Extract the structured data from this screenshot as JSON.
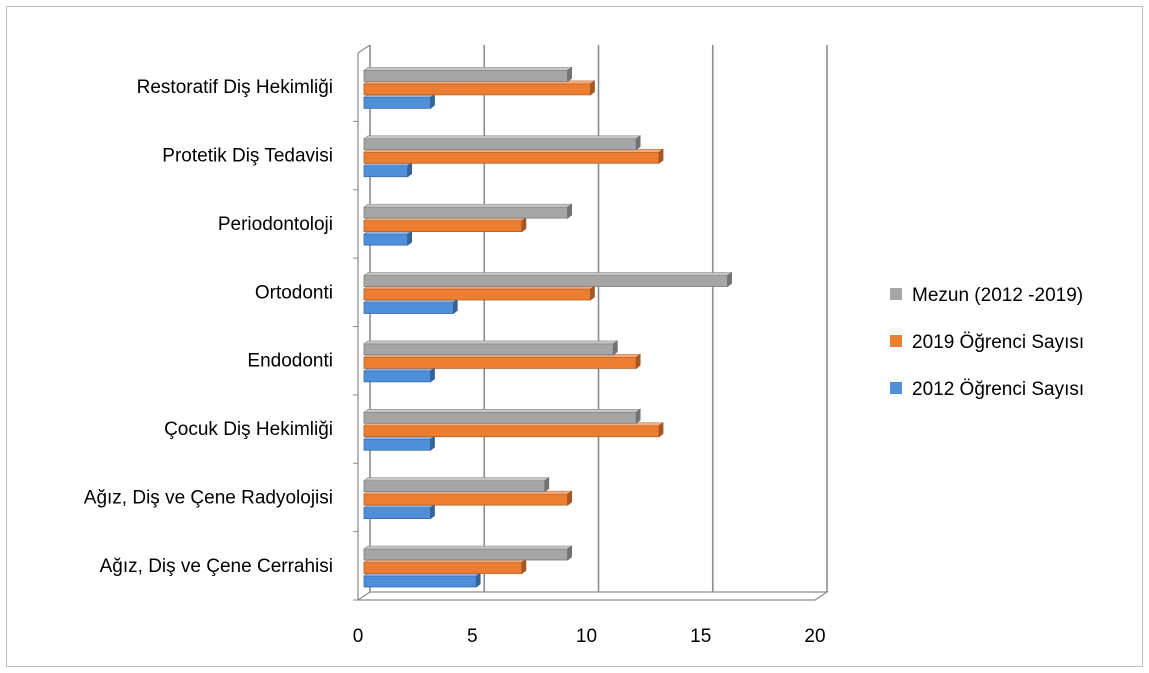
{
  "chart_data": {
    "type": "bar",
    "orientation": "horizontal",
    "style": "3d-clustered",
    "categories": [
      "Ağız, Diş ve Çene Cerrahisi",
      "Ağız, Diş ve Çene Radyolojisi",
      "Çocuk Diş Hekimliği",
      "Endodonti",
      "Ortodonti",
      "Periodontoloji",
      "Protetik Diş Tedavisi",
      "Restoratif Diş Hekimliği"
    ],
    "series": [
      {
        "name": "2012 Öğrenci Sayısı",
        "color": "#4f8fd9",
        "values": [
          5,
          3,
          3,
          3,
          4,
          2,
          2,
          3
        ]
      },
      {
        "name": "2019 Öğrenci Sayısı",
        "color": "#ed7d31",
        "values": [
          7,
          9,
          13,
          12,
          10,
          7,
          13,
          10
        ]
      },
      {
        "name": "Mezun (2012 -2019)",
        "color": "#a5a5a5",
        "values": [
          9,
          8,
          12,
          11,
          16,
          9,
          12,
          9
        ]
      }
    ],
    "legend_order": [
      "Mezun (2012 -2019)",
      "2019 Öğrenci Sayısı",
      "2012 Öğrenci Sayısı"
    ],
    "xlim": [
      0,
      20
    ],
    "xticks": [
      "0",
      "5",
      "10",
      "15",
      "20"
    ],
    "grid": true,
    "legend_position": "right"
  }
}
